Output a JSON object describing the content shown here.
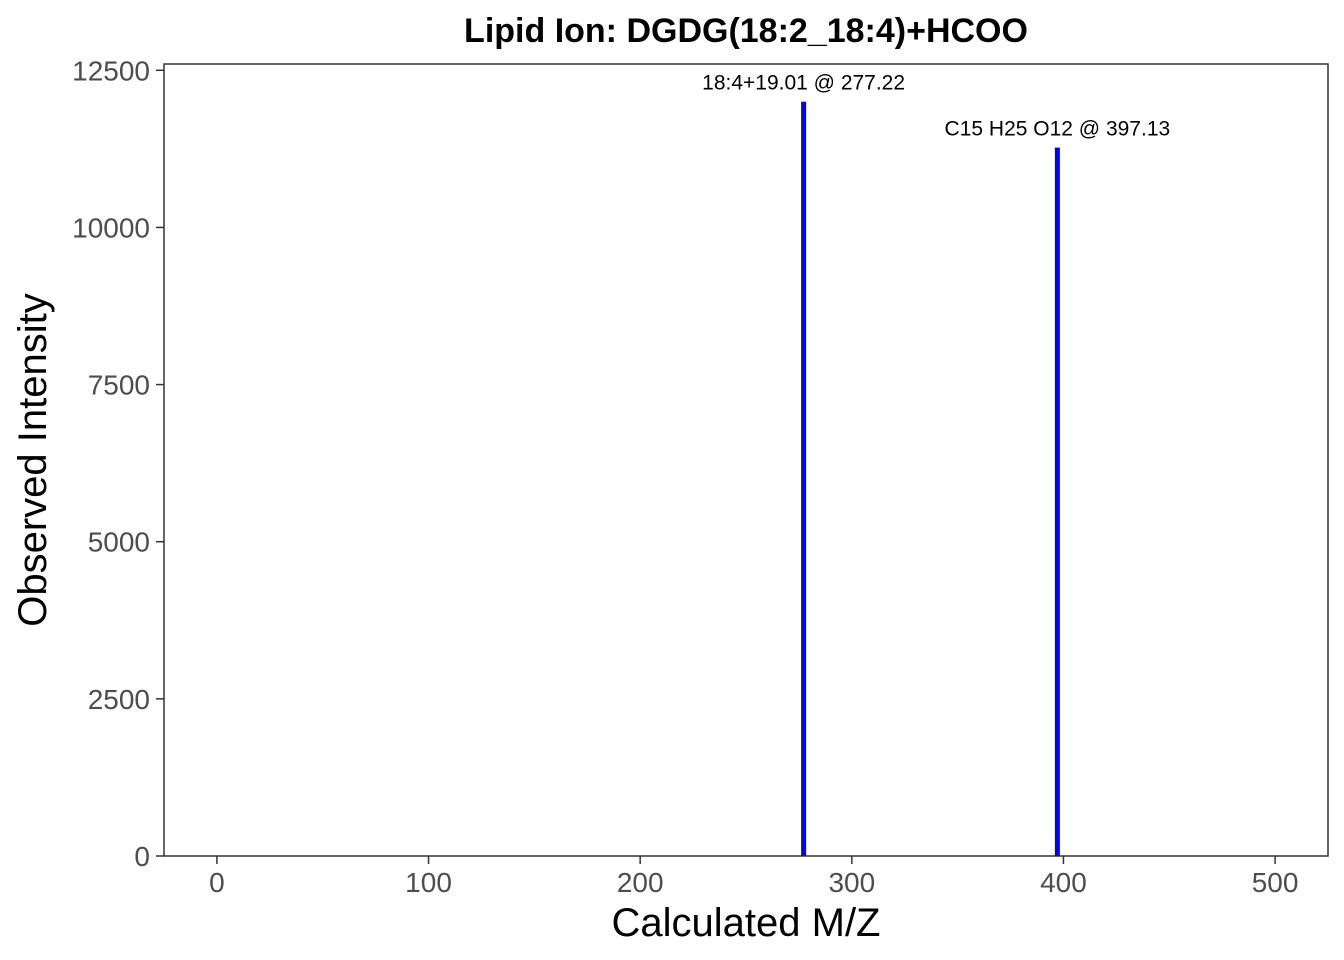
{
  "chart_data": {
    "type": "bar",
    "title": "Lipid Ion: DGDG(18:2_18:4)+HCOO",
    "xlabel": "Calculated M/Z",
    "ylabel": "Observed Intensity",
    "xlim": [
      -25,
      525
    ],
    "ylim": [
      0,
      12600
    ],
    "x_ticks": [
      0,
      100,
      200,
      300,
      400,
      500
    ],
    "y_ticks": [
      0,
      2500,
      5000,
      7500,
      10000,
      12500
    ],
    "x_tick_labels": [
      "0",
      "100",
      "200",
      "300",
      "400",
      "500"
    ],
    "y_tick_labels": [
      "0",
      "2500",
      "5000",
      "7500",
      "10000",
      "12500"
    ],
    "grid": false,
    "bar_color": "#0000ff",
    "peaks": [
      {
        "x": 277.22,
        "y": 12000,
        "label": "18:4+19.01 @ 277.22"
      },
      {
        "x": 397.13,
        "y": 11270,
        "label": "C15 H25 O12 @ 397.13"
      }
    ]
  }
}
